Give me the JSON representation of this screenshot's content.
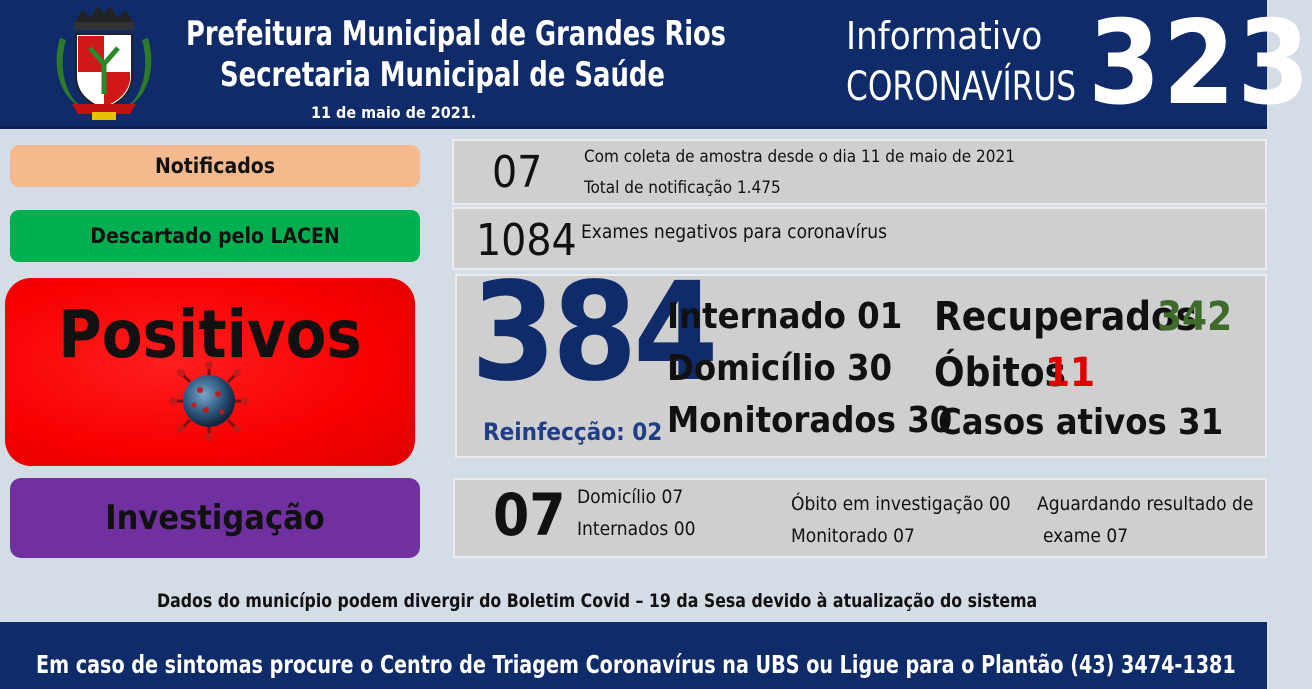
{
  "header": {
    "line1": "Prefeitura Municipal de Grandes Rios",
    "line2": "Secretaria Municipal de Saúde",
    "date": "11 de maio de 2021.",
    "informativo": "Informativo",
    "coronavirus": "CORONAVÍRUS",
    "issue_number": "323"
  },
  "notificados": {
    "label": "Notificados",
    "value": "07",
    "line1": "Com coleta de amostra desde o dia 11 de maio de 2021",
    "line2": "Total de notificação 1.475"
  },
  "descartado": {
    "label": "Descartado  pelo LACEN",
    "value": "1084",
    "text": "Exames negativos  para coronavírus"
  },
  "positivos": {
    "label": "Positivos",
    "value": "384",
    "reinfeccao": "Reinfecção: 02",
    "internado": "Internado 01",
    "domicilio": "Domicílio 30",
    "monitorados": "Monitorados 30",
    "recuperados_label": "Recuperados",
    "recuperados_value": "342",
    "obitos_label": "Óbitos",
    "obitos_value": "11",
    "casos_ativos": "Casos ativos 31"
  },
  "investigacao": {
    "label": "Investigação",
    "value": "07",
    "domicilio": "Domicílio 07",
    "internados": "Internados 00",
    "obito": "Óbito  em investigação  00",
    "monitorado": "Monitorado 07",
    "aguardando1": "Aguardando resultado de",
    "aguardando2": "exame 07"
  },
  "footnote": "Dados do município podem divergir do Boletim Covid – 19 da Sesa devido à atualização do sistema",
  "footer": "Em caso de sintomas procure o Centro de Triagem Coronavírus na UBS ou Ligue para o Plantão (43) 3474-1381",
  "colors": {
    "header_bg": "#0f2b6a",
    "notificados": "#f4b98d",
    "descartado": "#00b050",
    "positivos": "#ff0000",
    "investigacao": "#7030a0",
    "recuperados": "#3f6b2a",
    "obitos": "#e00000",
    "big_number": "#0f2b6a"
  },
  "icons": [
    "municipal-crest-icon",
    "coronavirus-icon"
  ]
}
